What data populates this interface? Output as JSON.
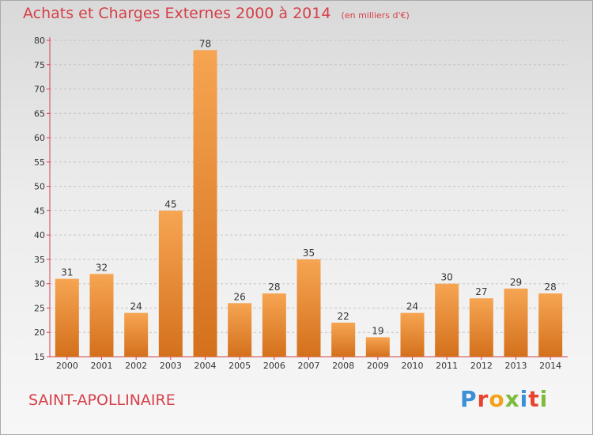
{
  "header": {
    "title": "Achats et Charges Externes 2000 à 2014",
    "subtitle": "(en milliers d'€)"
  },
  "footer": {
    "place": "SAINT-APOLLINAIRE",
    "logo_text": "Proxiti",
    "logo_colors": [
      "#3a8fd6",
      "#e8432e",
      "#f2a21b",
      "#7dbb3a",
      "#3a8fd6",
      "#e8432e",
      "#7dbb3a"
    ]
  },
  "chart_data": {
    "type": "bar",
    "title": "Achats et Charges Externes 2000 à 2014",
    "subtitle": "(en milliers d'€)",
    "categories": [
      "2000",
      "2001",
      "2002",
      "2003",
      "2004",
      "2005",
      "2006",
      "2007",
      "2008",
      "2009",
      "2010",
      "2011",
      "2012",
      "2013",
      "2014"
    ],
    "values": [
      31,
      32,
      24,
      45,
      78,
      26,
      28,
      35,
      22,
      19,
      24,
      30,
      27,
      29,
      28
    ],
    "ylim": [
      15,
      80
    ],
    "yticks": [
      15,
      20,
      25,
      30,
      35,
      40,
      45,
      50,
      55,
      60,
      65,
      70,
      75,
      80
    ],
    "grid": true,
    "legend": "none",
    "data_labels": true,
    "bar_color_light": "#f6a552",
    "bar_color_dark": "#d4701c",
    "axis_color": "#d6404a",
    "text_color": "#333333"
  }
}
